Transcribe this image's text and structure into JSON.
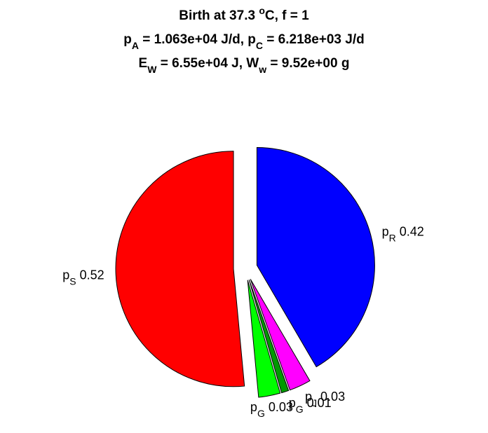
{
  "chart_data": {
    "type": "pie",
    "title": [
      [
        "Birth at 37.3 ",
        {
          "sup": "o"
        },
        "C, f = 1"
      ],
      [
        "p",
        {
          "sub": "A"
        },
        " = 1.063e+04 J/d, p",
        {
          "sub": "C"
        },
        " = 6.218e+03 J/d"
      ],
      [
        "E",
        {
          "sub": "W"
        },
        " = 6.55e+04 J, W",
        {
          "sub": "w"
        },
        " = 9.52e+00 g"
      ]
    ],
    "categories": [
      [
        "p",
        {
          "sub": "S"
        }
      ],
      [
        "p",
        {
          "sub": "G"
        }
      ],
      [
        "p",
        {
          "sub": "G"
        }
      ],
      [
        "p",
        {
          "sub": "J"
        }
      ],
      [
        "p",
        {
          "sub": "R"
        }
      ]
    ],
    "values": [
      0.52,
      0.03,
      0.01,
      0.03,
      0.42
    ],
    "colors": [
      "#ff0000",
      "#00ff00",
      "#009a00",
      "#ff00ff",
      "#0000ff"
    ]
  }
}
